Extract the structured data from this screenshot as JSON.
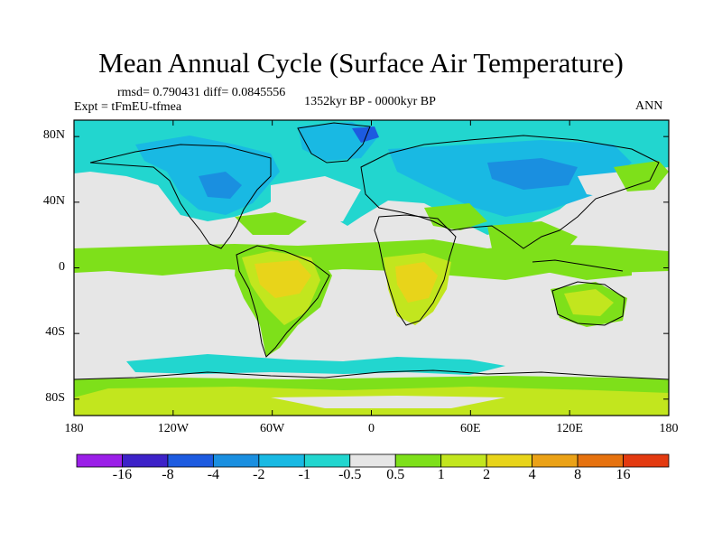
{
  "title": "Mean Annual Cycle (Surface Air Temperature)",
  "stats_label": "rmsd= 0.790431 diff= 0.0845556",
  "experiment_label": "Expt = tFmEU-tfmea",
  "period_label": "1352kyr BP - 0000kyr BP",
  "season_label": "ANN",
  "chart_data": {
    "type": "contour-map",
    "title": "Mean Annual Cycle (Surface Air Temperature)",
    "variable": "Surface Air Temperature difference",
    "rmsd": 0.790431,
    "diff": 0.0845556,
    "lon_range": [
      -180,
      180
    ],
    "lat_range": [
      -90,
      90
    ],
    "y_ticks": [
      {
        "value": 80,
        "label": "80N"
      },
      {
        "value": 40,
        "label": "40N"
      },
      {
        "value": 0,
        "label": "0"
      },
      {
        "value": -40,
        "label": "40S"
      },
      {
        "value": -80,
        "label": "80S"
      }
    ],
    "x_ticks": [
      {
        "value": -180,
        "label": "180"
      },
      {
        "value": -120,
        "label": "120W"
      },
      {
        "value": -60,
        "label": "60W"
      },
      {
        "value": 0,
        "label": "0"
      },
      {
        "value": 60,
        "label": "60E"
      },
      {
        "value": 120,
        "label": "120E"
      },
      {
        "value": 180,
        "label": "180"
      }
    ],
    "colorbar": {
      "colors": [
        "#9b1fe8",
        "#3d22c8",
        "#1d5be0",
        "#1a8fe0",
        "#19b9e3",
        "#22d6cf",
        "#e6e6e6",
        "#7ee01a",
        "#c2e61e",
        "#e8d41a",
        "#eba217",
        "#e6720f",
        "#e33a10"
      ],
      "labels": [
        "-16",
        "-8",
        "-4",
        "-2",
        "-1",
        "-0.5",
        "0.5",
        "1",
        "2",
        "4",
        "8",
        "16"
      ]
    }
  }
}
